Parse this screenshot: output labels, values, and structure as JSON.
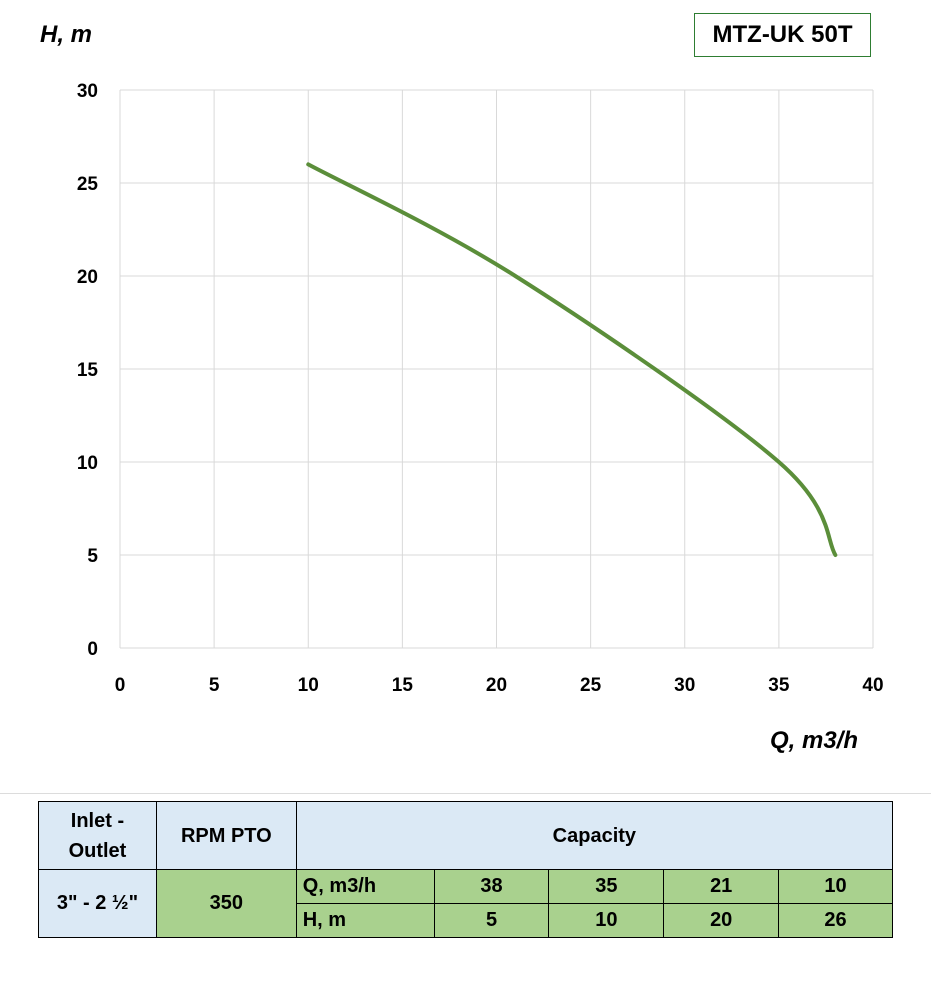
{
  "model": "MTZ-UK 50T",
  "chart_data": {
    "type": "line",
    "xlabel": "Q, m3/h",
    "ylabel": "H, m",
    "xlim": [
      0,
      40
    ],
    "ylim": [
      0,
      30
    ],
    "xticks": [
      "0",
      "5",
      "10",
      "15",
      "20",
      "25",
      "30",
      "35",
      "40"
    ],
    "yticks": [
      "0",
      "5",
      "10",
      "15",
      "20",
      "25",
      "30"
    ],
    "grid": true,
    "series": [
      {
        "color": "#5b8e3a",
        "x": [
          10,
          21,
          35,
          38
        ],
        "y": [
          26,
          20,
          10,
          5
        ]
      }
    ]
  },
  "table": {
    "inlet_outlet_label": "Inlet - Outlet",
    "rpm_label": "RPM PTO",
    "capacity_label": "Capacity",
    "inlet_outlet_value": "3\" - 2 ½\"",
    "rpm_value": "350",
    "q_label": "Q, m3/h",
    "h_label": "H, m",
    "q_values": [
      "38",
      "35",
      "21",
      "10"
    ],
    "h_values": [
      "5",
      "10",
      "20",
      "26"
    ]
  }
}
